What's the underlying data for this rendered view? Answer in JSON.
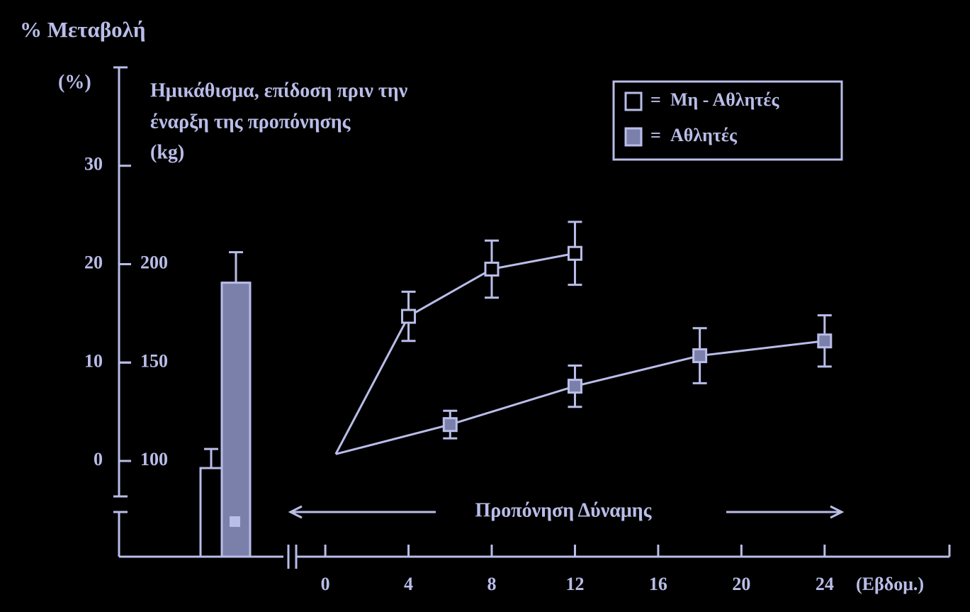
{
  "chart_data": {
    "type": "line",
    "title": "% Μεταβολή",
    "y_unit_label": "(%)",
    "annotation": [
      "Ημικάθισμα, επίδοση πριν την",
      "έναρξη της προπόνησης",
      "(kg)"
    ],
    "period_label": "Προπόνηση Δύναμης",
    "x_unit_label": "(Εβδομ.)",
    "legend_separator": "=",
    "legend_position": "upper right",
    "line_color": "#b9bde8",
    "xlim": [
      -1.4,
      30
    ],
    "xticks": [
      0,
      4,
      8,
      12,
      16,
      20,
      24
    ],
    "ylim": [
      -3.6,
      40
    ],
    "yticks": [
      0,
      10,
      20,
      30
    ],
    "y2lim": [
      82,
      300
    ],
    "y2ticks": [
      100,
      150,
      200
    ],
    "series": [
      {
        "name": "Μη - Αθλητές",
        "color": "#000000",
        "x": [
          0.5,
          4,
          8,
          12
        ],
        "values": [
          0.7,
          14.7,
          19.5,
          21.1
        ],
        "errors": [
          null,
          2.5,
          2.9,
          3.2
        ],
        "pretraining_kg": 96.4,
        "pretraining_kg_error": 9.7
      },
      {
        "name": "Αθλητές",
        "color": "#7b80aa",
        "x": [
          0.5,
          6,
          12,
          18,
          24
        ],
        "values": [
          0.7,
          3.7,
          7.6,
          10.7,
          12.2
        ],
        "errors": [
          null,
          1.4,
          2.1,
          2.8,
          2.6
        ],
        "pretraining_kg": 190.6,
        "pretraining_kg_error": 15.5
      }
    ]
  }
}
